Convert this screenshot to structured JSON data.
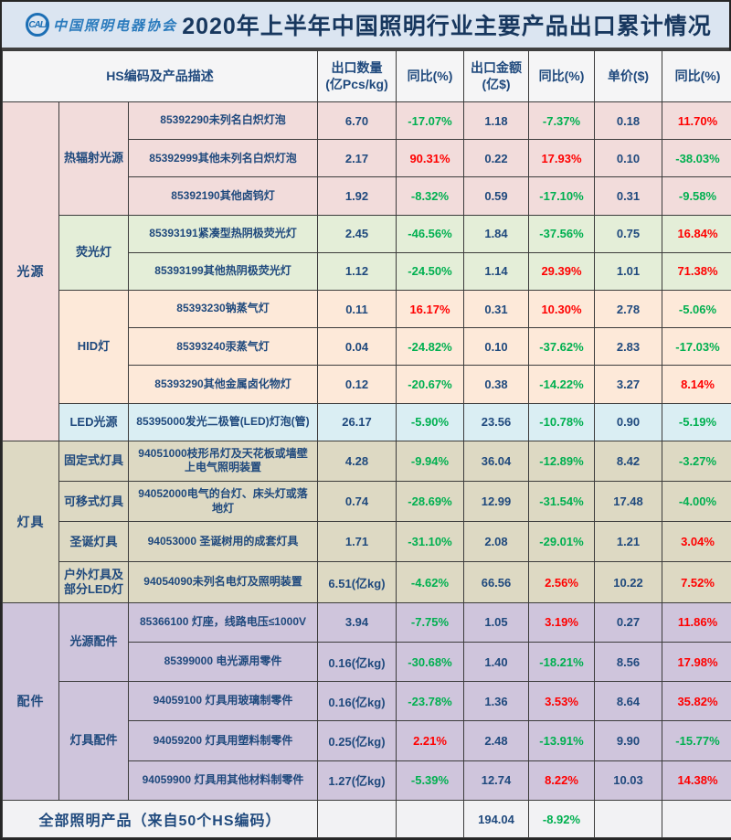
{
  "title": "2020年上半年中国照明行业主要产品出口累计情况",
  "logo": {
    "abbr": "CALI",
    "org_name": "中国照明电器协会"
  },
  "colors": {
    "title_band_bg": "#dbe5f1",
    "header_bg": "#f5f5f6",
    "footer_bg": "#f2f2f4",
    "text_navy": "#1f497d",
    "yoy_negative_green": "#00b050",
    "yoy_positive_red": "#ff0000"
  },
  "table": {
    "headers": {
      "desc": "HS编码及产品描述",
      "qty_line1": "出口数量",
      "qty_line2": "(亿Pcs/kg)",
      "yoy": "同比(%)",
      "value_line1": "出口金额",
      "value_line2": "(亿$)",
      "price": "单价($)"
    },
    "groups": [
      {
        "name": "光源",
        "color": "#f2dcdb",
        "subgroups": [
          {
            "name": "热辐射光源",
            "color": "#f2dcdb",
            "rows": [
              {
                "desc": "85392290未列名白炽灯泡",
                "qty": "6.70",
                "qty_yoy": "-17.07%",
                "value": "1.18",
                "value_yoy": "-7.37%",
                "price": "0.18",
                "price_yoy": "11.70%"
              },
              {
                "desc": "85392999其他未列名白炽灯泡",
                "qty": "2.17",
                "qty_yoy": "90.31%",
                "value": "0.22",
                "value_yoy": "17.93%",
                "price": "0.10",
                "price_yoy": "-38.03%"
              },
              {
                "desc": "85392190其他卤钨灯",
                "qty": "1.92",
                "qty_yoy": "-8.32%",
                "value": "0.59",
                "value_yoy": "-17.10%",
                "price": "0.31",
                "price_yoy": "-9.58%"
              }
            ]
          },
          {
            "name": "荧光灯",
            "color": "#e4eed8",
            "rows": [
              {
                "desc": "85393191紧凑型热阴极荧光灯",
                "qty": "2.45",
                "qty_yoy": "-46.56%",
                "value": "1.84",
                "value_yoy": "-37.56%",
                "price": "0.75",
                "price_yoy": "16.84%"
              },
              {
                "desc": "85393199其他热阴极荧光灯",
                "qty": "1.12",
                "qty_yoy": "-24.50%",
                "value": "1.14",
                "value_yoy": "29.39%",
                "price": "1.01",
                "price_yoy": "71.38%"
              }
            ]
          },
          {
            "name": "HID灯",
            "color": "#fde9d9",
            "rows": [
              {
                "desc": "85393230钠蒸气灯",
                "qty": "0.11",
                "qty_yoy": "16.17%",
                "value": "0.31",
                "value_yoy": "10.30%",
                "price": "2.78",
                "price_yoy": "-5.06%"
              },
              {
                "desc": "85393240汞蒸气灯",
                "qty": "0.04",
                "qty_yoy": "-24.82%",
                "value": "0.10",
                "value_yoy": "-37.62%",
                "price": "2.83",
                "price_yoy": "-17.03%"
              },
              {
                "desc": "85393290其他金属卤化物灯",
                "qty": "0.12",
                "qty_yoy": "-20.67%",
                "value": "0.38",
                "value_yoy": "-14.22%",
                "price": "3.27",
                "price_yoy": "8.14%"
              }
            ]
          },
          {
            "name": "LED光源",
            "color": "#daeef3",
            "rows": [
              {
                "desc": "85395000发光二极管(LED)灯泡(管)",
                "qty": "26.17",
                "qty_yoy": "-5.90%",
                "value": "23.56",
                "value_yoy": "-10.78%",
                "price": "0.90",
                "price_yoy": "-5.19%"
              }
            ]
          }
        ]
      },
      {
        "name": "灯具",
        "color": "#ddd9c3",
        "subgroups": [
          {
            "name": "固定式灯具",
            "color": "#ddd9c3",
            "rows": [
              {
                "desc": "94051000枝形吊灯及天花板或墙壁上电气照明装置",
                "qty": "4.28",
                "qty_yoy": "-9.94%",
                "value": "36.04",
                "value_yoy": "-12.89%",
                "price": "8.42",
                "price_yoy": "-3.27%"
              }
            ]
          },
          {
            "name": "可移式灯具",
            "color": "#ddd9c3",
            "rows": [
              {
                "desc": "94052000电气的台灯、床头灯或落地灯",
                "qty": "0.74",
                "qty_yoy": "-28.69%",
                "value": "12.99",
                "value_yoy": "-31.54%",
                "price": "17.48",
                "price_yoy": "-4.00%"
              }
            ]
          },
          {
            "name": "圣诞灯具",
            "color": "#ddd9c3",
            "rows": [
              {
                "desc": "94053000 圣诞树用的成套灯具",
                "qty": "1.71",
                "qty_yoy": "-31.10%",
                "value": "2.08",
                "value_yoy": "-29.01%",
                "price": "1.21",
                "price_yoy": "3.04%"
              }
            ]
          },
          {
            "name": "户外灯具及部分LED灯",
            "color": "#ddd9c3",
            "rows": [
              {
                "desc": "94054090未列名电灯及照明装置",
                "qty": "6.51(亿kg)",
                "qty_yoy": "-4.62%",
                "value": "66.56",
                "value_yoy": "2.56%",
                "price": "10.22",
                "price_yoy": "7.52%"
              }
            ]
          }
        ]
      },
      {
        "name": "配件",
        "color": "#cfc5dc",
        "subgroups": [
          {
            "name": "光源配件",
            "color": "#cfc5dc",
            "rows": [
              {
                "desc": "85366100 灯座，线路电压≤1000V",
                "qty": "3.94",
                "qty_yoy": "-7.75%",
                "value": "1.05",
                "value_yoy": "3.19%",
                "price": "0.27",
                "price_yoy": "11.86%"
              },
              {
                "desc": "85399000 电光源用零件",
                "qty": "0.16(亿kg)",
                "qty_yoy": "-30.68%",
                "value": "1.40",
                "value_yoy": "-18.21%",
                "price": "8.56",
                "price_yoy": "17.98%"
              }
            ]
          },
          {
            "name": "灯具配件",
            "color": "#cfc5dc",
            "rows": [
              {
                "desc": "94059100 灯具用玻璃制零件",
                "qty": "0.16(亿kg)",
                "qty_yoy": "-23.78%",
                "value": "1.36",
                "value_yoy": "3.53%",
                "price": "8.64",
                "price_yoy": "35.82%"
              },
              {
                "desc": "94059200 灯具用塑料制零件",
                "qty": "0.25(亿kg)",
                "qty_yoy": "2.21%",
                "value": "2.48",
                "value_yoy": "-13.91%",
                "price": "9.90",
                "price_yoy": "-15.77%"
              },
              {
                "desc": "94059900 灯具用其他材料制零件",
                "qty": "1.27(亿kg)",
                "qty_yoy": "-5.39%",
                "value": "12.74",
                "value_yoy": "8.22%",
                "price": "10.03",
                "price_yoy": "14.38%"
              }
            ]
          }
        ]
      }
    ],
    "footer": {
      "label": "全部照明产品（来自50个HS编码）",
      "export_value": "194.04",
      "value_yoy": "-8.92%"
    }
  }
}
